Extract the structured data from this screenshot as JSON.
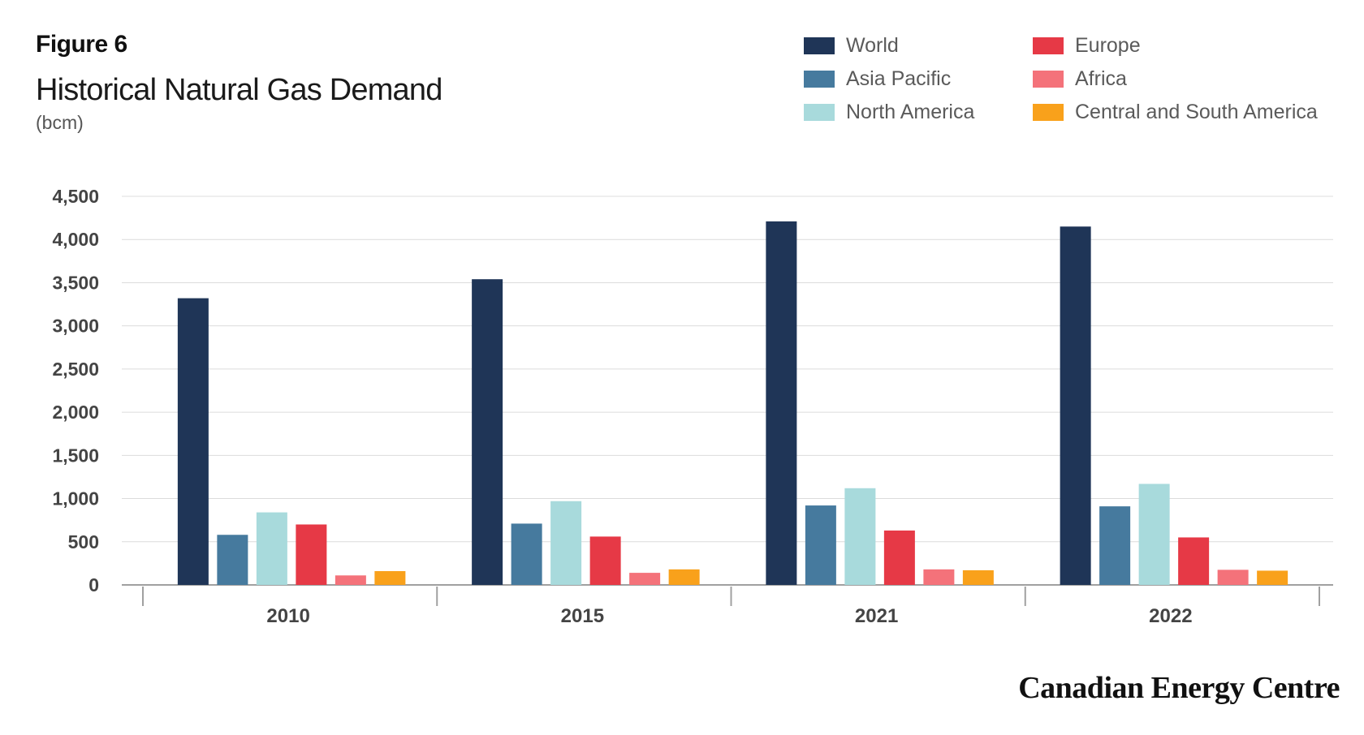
{
  "header": {
    "figure_label": "Figure 6",
    "title": "Historical Natural Gas Demand",
    "unit": "(bcm)"
  },
  "brand": "Canadian Energy Centre",
  "chart_data": {
    "type": "bar",
    "title": "Historical Natural Gas Demand",
    "ylabel": "(bcm)",
    "xlabel": "",
    "ylim": [
      0,
      4500
    ],
    "yticks": [
      0,
      500,
      1000,
      1500,
      2000,
      2500,
      3000,
      3500,
      4000,
      4500
    ],
    "ytick_labels": [
      "0",
      "500",
      "1,000",
      "1,500",
      "2,000",
      "2,500",
      "3,000",
      "3,500",
      "4,000",
      "4,500"
    ],
    "grid": true,
    "legend_position": "top-right",
    "categories": [
      "2010",
      "2015",
      "2021",
      "2022"
    ],
    "series": [
      {
        "name": "World",
        "color": "#1f3557",
        "values": [
          3320,
          3540,
          4210,
          4150
        ]
      },
      {
        "name": "Asia Pacific",
        "color": "#467a9e",
        "values": [
          580,
          710,
          920,
          910
        ]
      },
      {
        "name": "North America",
        "color": "#a8dadc",
        "values": [
          840,
          970,
          1120,
          1170
        ]
      },
      {
        "name": "Europe",
        "color": "#e63946",
        "values": [
          700,
          560,
          630,
          550
        ]
      },
      {
        "name": "Africa",
        "color": "#f4727a",
        "values": [
          110,
          140,
          180,
          175
        ]
      },
      {
        "name": "Central and South America",
        "color": "#f9a11b",
        "values": [
          160,
          180,
          170,
          165
        ]
      }
    ]
  }
}
